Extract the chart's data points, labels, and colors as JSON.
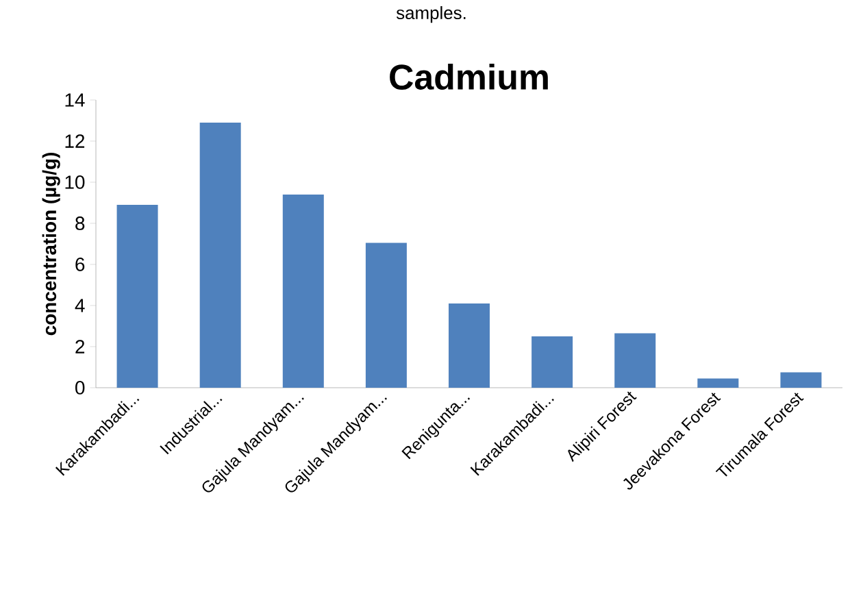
{
  "chart_data": {
    "type": "bar",
    "title": "Cadmium",
    "ylabel": "concentration (µg/g)",
    "annotations": [
      "samples."
    ],
    "categories": [
      "Karakambadi...",
      "Industrial...",
      "Gajula Mandyam...",
      "Gajula Mandyam...",
      "Renigunta...",
      "Karakambadi...",
      "Alipiri Forest",
      "Jeevakona Forest",
      "Tirumala Forest"
    ],
    "values": [
      8.9,
      12.9,
      9.4,
      7.05,
      4.1,
      2.5,
      2.65,
      0.45,
      0.75
    ],
    "color": "#4f81bd",
    "ylim": [
      0,
      14
    ],
    "yticks": [
      0,
      2,
      4,
      6,
      8,
      10,
      12,
      14
    ]
  }
}
